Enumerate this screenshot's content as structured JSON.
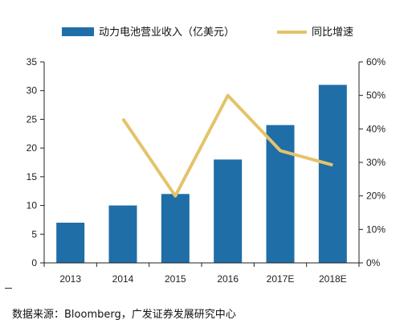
{
  "chart_data": {
    "type": "bar+line",
    "categories": [
      "2013",
      "2014",
      "2015",
      "2016",
      "2017E",
      "2018E"
    ],
    "series": [
      {
        "name": "动力电池营业收入（亿美元）",
        "type": "bar",
        "axis": "left",
        "color": "#1f6ea8",
        "values": [
          7,
          10,
          12,
          18,
          24,
          31
        ]
      },
      {
        "name": "同比增速",
        "type": "line",
        "axis": "right",
        "color": "#e3c46a",
        "values": [
          null,
          0.43,
          0.2,
          0.5,
          0.335,
          0.292
        ]
      }
    ],
    "y_left": {
      "min": 0,
      "max": 35,
      "ticks": [
        "0",
        "5",
        "10",
        "15",
        "20",
        "25",
        "30",
        "35"
      ]
    },
    "y_right": {
      "min": 0,
      "max": 0.6,
      "ticks": [
        "0%",
        "10%",
        "20%",
        "30%",
        "40%",
        "50%",
        "60%"
      ]
    },
    "legend_position": "top",
    "grid": false
  },
  "source": "数据来源：Bloomberg，广发证券发展研究中心"
}
